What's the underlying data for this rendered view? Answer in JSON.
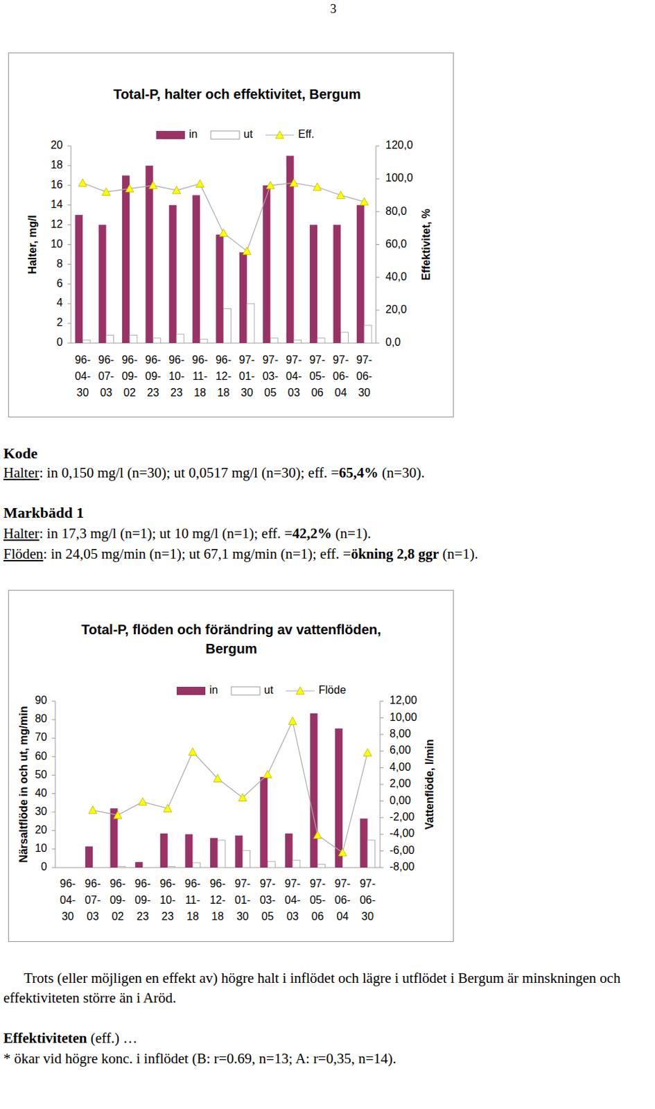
{
  "page_number": "3",
  "chart_data": [
    {
      "type": "bar",
      "title": "Total-P, halter och effektivitet, Bergum",
      "y_label": "Halter, mg/l",
      "y2_label": "Effektivitet, %",
      "categories": [
        "96-04-30",
        "96-07-03",
        "96-09-02",
        "96-09-23",
        "96-10-23",
        "96-11-18",
        "96-12-18",
        "97-01-30",
        "97-03-05",
        "97-04-03",
        "97-05-06",
        "97-06-04",
        "97-06-30"
      ],
      "series": [
        {
          "name": "in",
          "type": "bar",
          "color": "#993366",
          "values": [
            13,
            12,
            17,
            18,
            14,
            15,
            11,
            9.2,
            16,
            19,
            12,
            12,
            14
          ]
        },
        {
          "name": "ut",
          "type": "bar",
          "color": "#ffffff",
          "values": [
            0.3,
            0.8,
            0.8,
            0.5,
            0.9,
            0.4,
            3.5,
            4.0,
            0.5,
            0.3,
            0.5,
            1.1,
            1.8
          ]
        },
        {
          "name": "Eff.",
          "type": "line",
          "axis": "y2",
          "color": "#ffff00",
          "marker": "triangle",
          "values": [
            97.5,
            92,
            94,
            96,
            93,
            97,
            67,
            56,
            96,
            97.5,
            95,
            90,
            86
          ]
        }
      ],
      "ylim": [
        0,
        20
      ],
      "yticks": [
        0,
        2,
        4,
        6,
        8,
        10,
        12,
        14,
        16,
        18,
        20
      ],
      "y2lim": [
        0,
        120
      ],
      "y2ticks": [
        {
          "value": 0,
          "label": "0,0"
        },
        {
          "value": 20,
          "label": "20,0"
        },
        {
          "value": 40,
          "label": "40,0"
        },
        {
          "value": 60,
          "label": "60,0"
        },
        {
          "value": 80,
          "label": "80,0"
        },
        {
          "value": 100,
          "label": "100,0"
        },
        {
          "value": 120,
          "label": "120,0"
        }
      ],
      "grid": false,
      "legend": "top"
    },
    {
      "type": "bar",
      "title": "Total-P, flöden och förändring av vattenflöden, Bergum",
      "y_label": "Närsaltflöde in och ut, mg/min",
      "y2_label": "Vattenflöde, l/min",
      "categories": [
        "96-04-30",
        "96-07-03",
        "96-09-02",
        "96-09-23",
        "96-10-23",
        "96-11-18",
        "96-12-18",
        "97-01-30",
        "97-03-05",
        "97-04-03",
        "97-05-06",
        "97-06-04",
        "97-06-30"
      ],
      "series": [
        {
          "name": "in",
          "type": "bar",
          "color": "#993366",
          "values": [
            null,
            11.4,
            32,
            3,
            18.4,
            18,
            16,
            17.3,
            49,
            18.4,
            83.4,
            75.2,
            26.5
          ]
        },
        {
          "name": "ut",
          "type": "bar",
          "color": "#ffffff",
          "values": [
            null,
            0,
            0.5,
            0,
            0.5,
            2.6,
            14.8,
            9.2,
            3.3,
            4,
            1.8,
            0,
            14.8
          ]
        },
        {
          "name": "Flöde",
          "type": "line",
          "axis": "y2",
          "color": "#ffff00",
          "marker": "triangle",
          "values": [
            null,
            -1.1,
            -1.7,
            -0.1,
            -0.9,
            5.9,
            2.7,
            0.4,
            3.2,
            9.6,
            -4.1,
            -6.2,
            5.8
          ]
        }
      ],
      "ylim": [
        0,
        90
      ],
      "yticks": [
        0,
        10,
        20,
        30,
        40,
        50,
        60,
        70,
        80,
        90
      ],
      "y2lim": [
        -8,
        12
      ],
      "y2ticks": [
        {
          "value": -8,
          "label": "-8,00"
        },
        {
          "value": -6,
          "label": "-6,00"
        },
        {
          "value": -4,
          "label": "-4,00"
        },
        {
          "value": -2,
          "label": "-2,00"
        },
        {
          "value": 0,
          "label": "0,00"
        },
        {
          "value": 2,
          "label": "2,00"
        },
        {
          "value": 4,
          "label": "4,00"
        },
        {
          "value": 6,
          "label": "6,00"
        },
        {
          "value": 8,
          "label": "8,00"
        },
        {
          "value": 10,
          "label": "10,00"
        },
        {
          "value": 12,
          "label": "12,00"
        }
      ],
      "grid": false,
      "legend": "top"
    }
  ],
  "sections": [
    {
      "heading": "Kode",
      "lines": [
        {
          "label": "Halter",
          "text": ": in 0,150 mg/l (n=30); ut 0,0517 mg/l (n=30); eff. =",
          "emph": "65,4%",
          "tail": " (n=30)."
        }
      ]
    },
    {
      "heading": "Markbädd 1",
      "lines": [
        {
          "label": "Halter",
          "text": ": in 17,3 mg/l (n=1); ut 10 mg/l (n=1);  eff. =",
          "emph": "42,2%",
          "tail": " (n=1)."
        },
        {
          "label": "Flöden",
          "text": ": in 24,05 mg/min (n=1); ut 67,1 mg/min (n=1); eff. =",
          "emph": "ökning 2,8 ggr",
          "tail": " (n=1)."
        }
      ]
    }
  ],
  "paragraph": "Trots (eller möjligen en effekt av) högre halt i inflödet och lägre i utflödet i Bergum är minskningen och effektiviteten  större än i Aröd.",
  "effect": {
    "heading": "Effektiviteten",
    "text": " (eff.) …",
    "note": "* ökar vid högre konc. i inflödet (B: r=0.69, n=13; A: r=0,35, n=14)."
  }
}
